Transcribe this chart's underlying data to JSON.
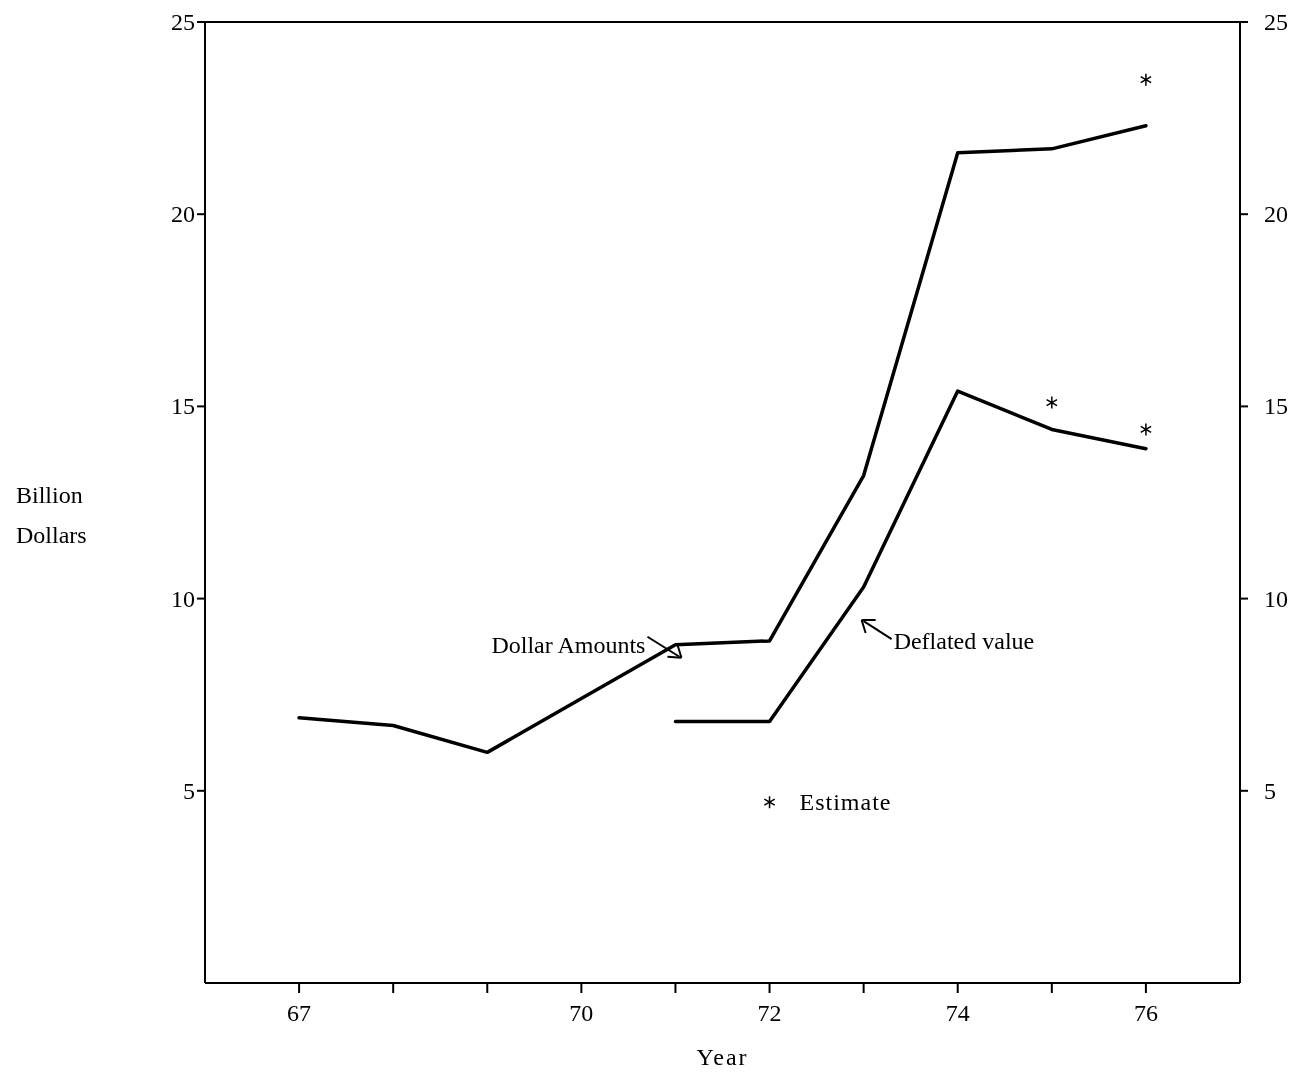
{
  "chart_data": {
    "type": "line",
    "xlabel": "Year",
    "ylabel": "Billion Dollars",
    "xlim": [
      66,
      77
    ],
    "xticks": [
      67,
      {
        "value": 68,
        "label": null
      },
      {
        "value": 69,
        "label": null
      },
      70,
      {
        "value": 71,
        "label": null
      },
      72,
      {
        "value": 73,
        "label": null
      },
      74,
      {
        "value": 75,
        "label": null
      },
      76
    ],
    "ylim": [
      0,
      25
    ],
    "yticks": [
      5,
      10,
      15,
      20,
      25
    ],
    "y2lim": [
      0,
      25
    ],
    "y2ticks": [
      5,
      10,
      15,
      20,
      25
    ],
    "series": [
      {
        "name": "Dollar Amounts",
        "color": "#000000",
        "x": [
          67,
          68,
          69,
          70,
          71,
          72,
          73,
          74,
          75,
          76
        ],
        "values": [
          6.9,
          6.7,
          6.0,
          7.4,
          8.8,
          8.9,
          13.2,
          21.6,
          21.7,
          22.3
        ]
      },
      {
        "name": "Deflated value",
        "color": "#000000",
        "x": [
          71,
          72,
          73,
          74,
          75,
          76
        ],
        "values": [
          6.8,
          6.8,
          10.3,
          15.4,
          14.4,
          13.9
        ]
      },
      {
        "name": "Estimate",
        "type": "scatter",
        "marker": "cross",
        "color": "#000000",
        "x": [
          76,
          75,
          76
        ],
        "values": [
          23.5,
          15.1,
          14.4
        ]
      }
    ],
    "grid": false,
    "legend": "bottom",
    "marker": "none",
    "line_style": "solid"
  }
}
